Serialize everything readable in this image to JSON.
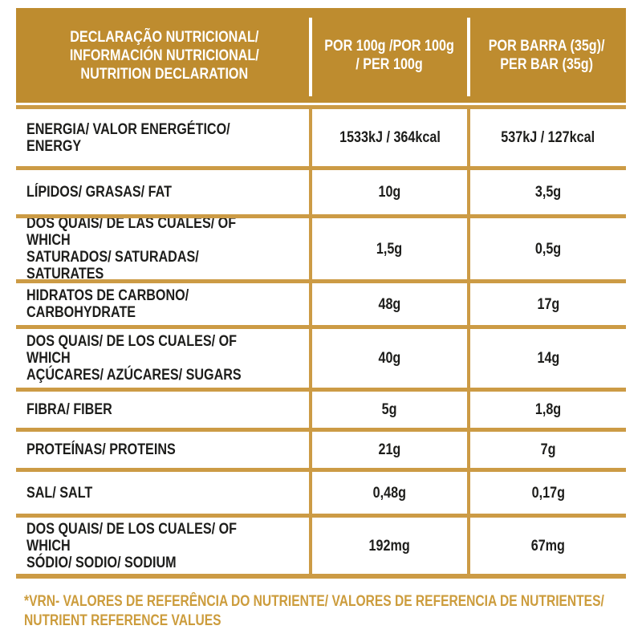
{
  "colors": {
    "header_gold": "#BE8C2F",
    "grid_line_gold": "#CC9B45",
    "footer_text_gold": "#CC9C3C",
    "body_text": "#1D1D1B",
    "header_text": "#FFFFFF",
    "background": "#FFFFFF"
  },
  "header": {
    "col1": "DECLARAÇÃO NUTRICIONAL/\nINFORMACIÓN NUTRICIONAL/\nNUTRITION DECLARATION",
    "col2": "POR 100g /POR 100g\n/ PER 100g",
    "col3": "POR BARRA (35g)/\nPER BAR (35g)"
  },
  "table": {
    "rows": [
      {
        "label": "ENERGIA/ VALOR ENERGÉTICO/ ENERGY",
        "per_100g": "1533kJ / 364kcal",
        "per_bar": "537kJ / 127kcal"
      },
      {
        "label": "LÍPIDOS/ GRASAS/ FAT",
        "per_100g": "10g",
        "per_bar": "3,5g"
      },
      {
        "label": "DOS QUAIS/ DE LAS CUALES/ OF WHICH\nSATURADOS/ SATURADAS/ SATURATES",
        "per_100g": "1,5g",
        "per_bar": "0,5g"
      },
      {
        "label": "HIDRATOS DE CARBONO/ CARBOHYDRATE",
        "per_100g": "48g",
        "per_bar": "17g"
      },
      {
        "label": "DOS QUAIS/ DE LOS CUALES/ OF WHICH\nAÇÚCARES/ AZÚCARES/ SUGARS",
        "per_100g": "40g",
        "per_bar": "14g"
      },
      {
        "label": "FIBRA/ FIBER",
        "per_100g": "5g",
        "per_bar": "1,8g"
      },
      {
        "label": "PROTEÍNAS/ PROTEINS",
        "per_100g": "21g",
        "per_bar": "7g"
      },
      {
        "label": "SAL/ SALT",
        "per_100g": "0,48g",
        "per_bar": "0,17g"
      },
      {
        "label": "DOS QUAIS/ DE LOS CUALES/ OF WHICH\nSÓDIO/ SODIO/ SODIUM",
        "per_100g": "192mg",
        "per_bar": "67mg"
      }
    ]
  },
  "footer": {
    "line1": "*VRN- VALORES DE REFERÊNCIA DO NUTRIENTE/ VALORES DE REFERENCIA DE NUTRIENTES/",
    "line2": "NUTRIENT REFERENCE VALUES"
  }
}
